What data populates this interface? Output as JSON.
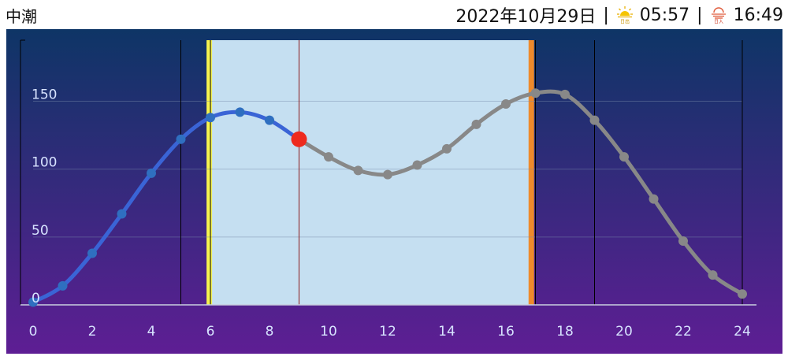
{
  "header": {
    "tide_type": "中潮",
    "date": "2022年10月29日",
    "separator": "|",
    "sunrise_icon": "sunrise-icon",
    "sunrise_icon_label": "日出",
    "sunrise": "05:57",
    "sunset_icon": "sunset-icon",
    "sunset_icon_label": "日入",
    "sunset": "16:49"
  },
  "chart_data": {
    "type": "line",
    "title": "",
    "xlabel": "",
    "ylabel": "",
    "xlim": [
      0,
      24
    ],
    "ylim": [
      0,
      195
    ],
    "x_ticks": [
      0,
      2,
      4,
      6,
      8,
      10,
      12,
      14,
      16,
      18,
      20,
      22,
      24
    ],
    "y_ticks": [
      0,
      50,
      100,
      150
    ],
    "grid": "horizontal",
    "x": [
      0,
      1,
      2,
      3,
      4,
      5,
      6,
      7,
      8,
      9,
      10,
      11,
      12,
      13,
      14,
      15,
      16,
      17,
      18,
      19,
      20,
      21,
      22,
      23,
      24
    ],
    "values": [
      2,
      14,
      38,
      67,
      97,
      122,
      138,
      142,
      136,
      122,
      109,
      99,
      96,
      103,
      115,
      133,
      148,
      156,
      155,
      136,
      109,
      78,
      47,
      22,
      8
    ],
    "current_time": 9,
    "current_value": 122,
    "daylight": {
      "start": 5.95,
      "end": 16.82
    },
    "vertical_lines": [
      5,
      6,
      9,
      17,
      19,
      24
    ],
    "colors": {
      "past": "#3a64d6",
      "past_points": "#2f6fc0",
      "future": "#888888",
      "current_marker": "#ee2a1e",
      "daylight_band": "#c5dff1",
      "sunrise_band": "#f7f450",
      "sunset_band": "#ee8a2c",
      "current_line": "#8b1a1a",
      "bg_top": "#0e3566",
      "bg_bottom": "#5e1e94",
      "tick_label": "#d7e3ff"
    }
  }
}
